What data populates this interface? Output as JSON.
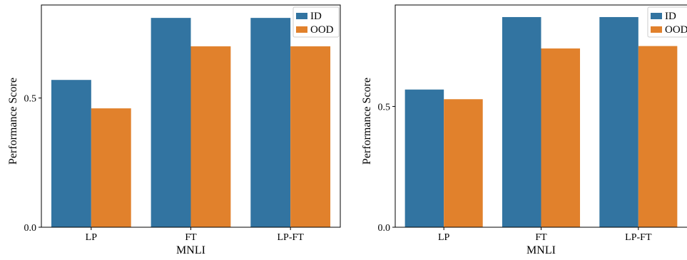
{
  "chart_data": [
    {
      "type": "bar",
      "categories": [
        "LP",
        "FT",
        "LP-FT"
      ],
      "series": [
        {
          "name": "ID",
          "values": [
            0.57,
            0.81,
            0.81
          ]
        },
        {
          "name": "OOD",
          "values": [
            0.46,
            0.7,
            0.7
          ]
        }
      ],
      "xlabel": "MNLI",
      "ylabel": "Performance Score",
      "yticks": [
        0.0,
        0.5
      ],
      "ytick_labels": [
        "0.0",
        "0.5"
      ],
      "ylim": [
        0,
        0.86
      ],
      "grid": false,
      "legend": "top-right",
      "colors": {
        "ID": "#3274a1",
        "OOD": "#e1812c"
      }
    },
    {
      "type": "bar",
      "categories": [
        "LP",
        "FT",
        "LP-FT"
      ],
      "series": [
        {
          "name": "ID",
          "values": [
            0.57,
            0.87,
            0.87
          ]
        },
        {
          "name": "OOD",
          "values": [
            0.53,
            0.74,
            0.75
          ]
        }
      ],
      "xlabel": "MNLI",
      "ylabel": "Performance Score",
      "yticks": [
        0.0,
        0.5
      ],
      "ytick_labels": [
        "0.0",
        "0.5"
      ],
      "ylim": [
        0,
        0.92
      ],
      "grid": false,
      "legend": "top-right",
      "colors": {
        "ID": "#3274a1",
        "OOD": "#e1812c"
      }
    }
  ]
}
